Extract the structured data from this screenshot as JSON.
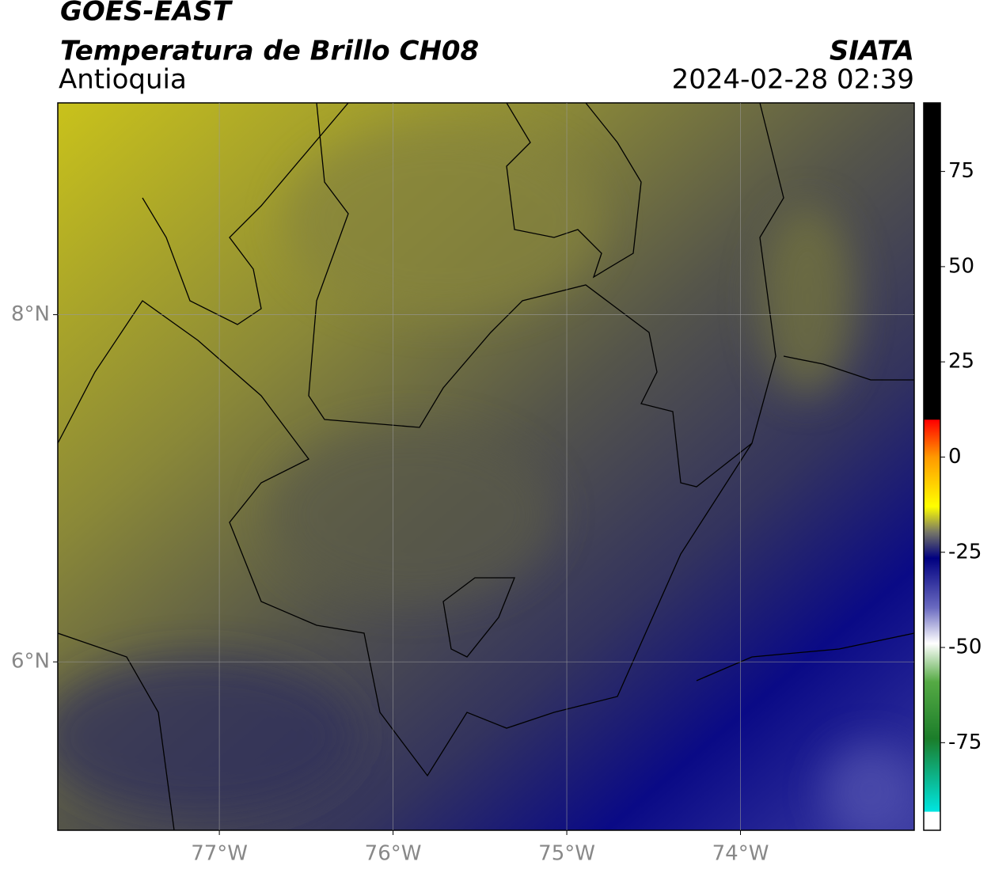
{
  "header": {
    "satellite": "GOES-EAST",
    "product": "Temperatura de Brillo CH08",
    "source": "SIATA",
    "region": "Antioquia",
    "datetime": "2024-02-28 02:39"
  },
  "map": {
    "xlim": [
      -77.93,
      -73.0
    ],
    "ylim": [
      5.03,
      9.22
    ],
    "xticks": [
      {
        "value": -77,
        "label": "77°W"
      },
      {
        "value": -76,
        "label": "76°W"
      },
      {
        "value": -75,
        "label": "75°W"
      },
      {
        "value": -74,
        "label": "74°W"
      }
    ],
    "yticks": [
      {
        "value": 8,
        "label": "8°N"
      },
      {
        "value": 6,
        "label": "6°N"
      }
    ],
    "grid": true
  },
  "colorbar": {
    "lim": [
      -98,
      93
    ],
    "ticks": [
      75,
      50,
      25,
      0,
      -25,
      -50,
      -75
    ]
  }
}
